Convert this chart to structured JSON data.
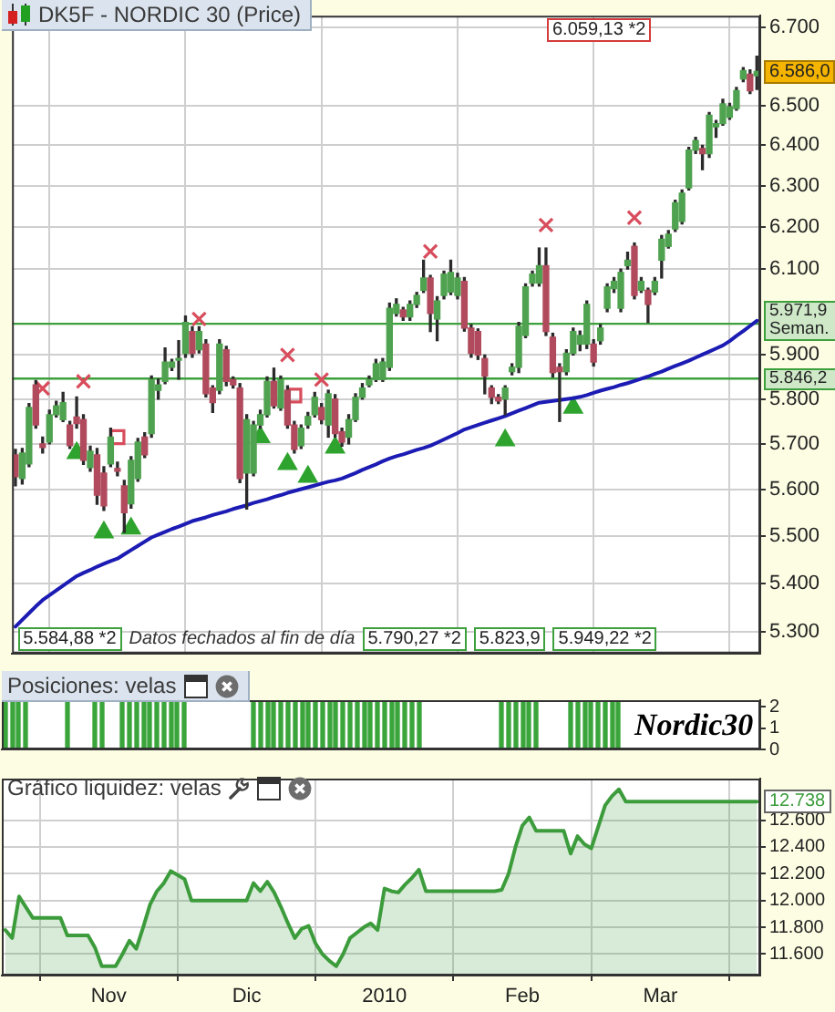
{
  "chart_data": [
    {
      "type": "candlestick",
      "title": "DK5F - NORDIC 30 (Price)",
      "categories": [
        null,
        null,
        null,
        null,
        null,
        null,
        null,
        null,
        null,
        null,
        null,
        null,
        null,
        null,
        null,
        null,
        null,
        null,
        null,
        null,
        null,
        null,
        null,
        null,
        null,
        null,
        null,
        null,
        null,
        null,
        null,
        null,
        null,
        null,
        null,
        null,
        null,
        null,
        null,
        null,
        null,
        null,
        null,
        null,
        null,
        null,
        null,
        null,
        null,
        null,
        null,
        null,
        null,
        null,
        null,
        null,
        null,
        null,
        null,
        null,
        null,
        null,
        null,
        null,
        null,
        null,
        null,
        null,
        null,
        null,
        null,
        null,
        null,
        null,
        null,
        null,
        null,
        null,
        null,
        null,
        null,
        null,
        null,
        null,
        null,
        null,
        null,
        null,
        null,
        null,
        null,
        null,
        null,
        null,
        null,
        null,
        null,
        null,
        null,
        null,
        null,
        null,
        null,
        null,
        null,
        null,
        null,
        null,
        null,
        null
      ],
      "ohlc": [
        [
          5676,
          5688,
          5608,
          5628
        ],
        [
          5624,
          5690,
          5612,
          5680
        ],
        [
          5656,
          5790,
          5650,
          5781
        ],
        [
          5832,
          5842,
          5735,
          5742
        ],
        [
          5700,
          5715,
          5680,
          5692
        ],
        [
          5704,
          5775,
          5700,
          5765
        ],
        [
          5765,
          5795,
          5760,
          5785
        ],
        [
          5754,
          5815,
          5750,
          5792
        ],
        [
          5742,
          5750,
          5690,
          5696
        ],
        [
          5760,
          5805,
          5735,
          5745
        ],
        [
          5754,
          5765,
          5655,
          5664
        ],
        [
          5648,
          5695,
          5640,
          5684
        ],
        [
          5676,
          5690,
          5568,
          5588
        ],
        [
          5636,
          5650,
          5555,
          5565
        ],
        [
          5656,
          5735,
          5650,
          5715
        ],
        [
          5646,
          5660,
          5630,
          5640
        ],
        [
          5608,
          5620,
          5508,
          5550
        ],
        [
          5569,
          5672,
          5560,
          5664
        ],
        [
          5624,
          5712,
          5618,
          5704
        ],
        [
          5715,
          5725,
          5670,
          5676
        ],
        [
          5723,
          5852,
          5715,
          5844
        ],
        [
          5820,
          5845,
          5800,
          5832
        ],
        [
          5840,
          5916,
          5835,
          5884
        ],
        [
          5872,
          5890,
          5865,
          5884
        ],
        [
          5888,
          5933,
          5845,
          5892
        ],
        [
          5904,
          5990,
          5895,
          5975
        ],
        [
          5954,
          5965,
          5895,
          5904
        ],
        [
          5912,
          5965,
          5905,
          5954
        ],
        [
          5925,
          5935,
          5805,
          5812
        ],
        [
          5825,
          5830,
          5770,
          5792
        ],
        [
          5820,
          5935,
          5812,
          5925
        ],
        [
          5912,
          5920,
          5830,
          5840
        ],
        [
          5844,
          5850,
          5825,
          5832
        ],
        [
          5825,
          5835,
          5615,
          5624
        ],
        [
          5636,
          5765,
          5558,
          5754
        ],
        [
          5636,
          5750,
          5630,
          5742
        ],
        [
          5742,
          5775,
          5735,
          5765
        ],
        [
          5765,
          5850,
          5760,
          5840
        ],
        [
          5840,
          5870,
          5780,
          5785
        ],
        [
          5780,
          5852,
          5775,
          5844
        ],
        [
          5820,
          5830,
          5735,
          5742
        ],
        [
          5742,
          5750,
          5680,
          5688
        ],
        [
          5696,
          5742,
          5690,
          5735
        ],
        [
          5742,
          5770,
          5735,
          5761
        ],
        [
          5765,
          5815,
          5760,
          5804
        ],
        [
          5781,
          5790,
          5745,
          5754
        ],
        [
          5742,
          5820,
          5715,
          5812
        ],
        [
          5800,
          5810,
          5715,
          5723
        ],
        [
          5727,
          5735,
          5695,
          5704
        ],
        [
          5715,
          5765,
          5700,
          5754
        ],
        [
          5754,
          5812,
          5750,
          5804
        ],
        [
          5804,
          5835,
          5800,
          5825
        ],
        [
          5832,
          5852,
          5828,
          5844
        ],
        [
          5844,
          5890,
          5840,
          5880
        ],
        [
          5844,
          5892,
          5840,
          5884
        ],
        [
          5872,
          6020,
          5865,
          6008
        ],
        [
          5996,
          6030,
          5990,
          6017
        ],
        [
          6004,
          6010,
          5980,
          5988
        ],
        [
          5988,
          6025,
          5980,
          6017
        ],
        [
          6017,
          6045,
          6010,
          6038
        ],
        [
          6050,
          6121,
          6045,
          6079
        ],
        [
          6079,
          6085,
          5954,
          5996
        ],
        [
          5983,
          6035,
          5933,
          6025
        ],
        [
          6038,
          6095,
          6030,
          6088
        ],
        [
          6046,
          6121,
          6040,
          6092
        ],
        [
          6038,
          6090,
          6030,
          6079
        ],
        [
          6071,
          6080,
          5955,
          5962
        ],
        [
          5962,
          5970,
          5895,
          5904
        ],
        [
          5954,
          5960,
          5890,
          5900
        ],
        [
          5892,
          5900,
          5812,
          5852
        ],
        [
          5825,
          5830,
          5790,
          5804
        ],
        [
          5804,
          5810,
          5790,
          5796
        ],
        [
          5800,
          5830,
          5765,
          5825
        ],
        [
          5862,
          5880,
          5855,
          5872
        ],
        [
          5872,
          5975,
          5860,
          5966
        ],
        [
          5945,
          6065,
          5940,
          6058
        ],
        [
          6067,
          6095,
          6060,
          6088
        ],
        [
          6067,
          6150,
          6060,
          6108
        ],
        [
          6108,
          6150,
          5945,
          5954
        ],
        [
          5941,
          5950,
          5850,
          5860
        ],
        [
          5872,
          5880,
          5750,
          5862
        ],
        [
          5862,
          5912,
          5855,
          5904
        ],
        [
          5904,
          5962,
          5900,
          5954
        ],
        [
          5925,
          5955,
          5910,
          5945
        ],
        [
          5925,
          6025,
          5915,
          6017
        ],
        [
          5925,
          5935,
          5875,
          5884
        ],
        [
          5933,
          5970,
          5925,
          5962
        ],
        [
          6008,
          6065,
          6000,
          6058
        ],
        [
          6054,
          6080,
          6045,
          6071
        ],
        [
          6008,
          6100,
          6000,
          6092
        ],
        [
          6108,
          6140,
          6100,
          6121
        ],
        [
          6154,
          6162,
          6030,
          6038
        ],
        [
          6050,
          6080,
          6045,
          6071
        ],
        [
          6050,
          6055,
          5975,
          6017
        ],
        [
          6046,
          6080,
          6040,
          6071
        ],
        [
          6121,
          6180,
          6079,
          6171
        ],
        [
          6154,
          6192,
          6150,
          6183
        ],
        [
          6196,
          6265,
          6190,
          6259
        ],
        [
          6214,
          6290,
          6208,
          6282
        ],
        [
          6295,
          6395,
          6290,
          6388
        ],
        [
          6388,
          6420,
          6380,
          6412
        ],
        [
          6392,
          6400,
          6340,
          6379
        ],
        [
          6379,
          6482,
          6370,
          6475
        ],
        [
          6446,
          6462,
          6420,
          6454
        ],
        [
          6454,
          6515,
          6450,
          6504
        ],
        [
          6470,
          6505,
          6465,
          6496
        ],
        [
          6492,
          6545,
          6488,
          6537
        ],
        [
          6567,
          6596,
          6560,
          6588
        ],
        [
          6579,
          6590,
          6530,
          6537
        ],
        [
          6575,
          6625,
          6540,
          6586
        ]
      ],
      "colors": [
        "#b04a5c",
        "#4fa24f",
        "#4fa24f",
        "#b04a5c",
        "#b04a5c",
        "#4fa24f",
        "#4fa24f",
        "#4fa24f",
        "#b04a5c",
        "#b04a5c",
        "#b04a5c",
        "#4fa24f",
        "#b04a5c",
        "#b04a5c",
        "#4fa24f",
        "#b04a5c",
        "#b04a5c",
        "#4fa24f",
        "#4fa24f",
        "#b04a5c",
        "#4fa24f",
        "#4fa24f",
        "#4fa24f",
        "#4fa24f",
        "#4fa24f",
        "#4fa24f",
        "#b04a5c",
        "#4fa24f",
        "#b04a5c",
        "#b04a5c",
        "#4fa24f",
        "#b04a5c",
        "#b04a5c",
        "#b04a5c",
        "#4fa24f",
        "#4fa24f",
        "#4fa24f",
        "#4fa24f",
        "#b04a5c",
        "#4fa24f",
        "#b04a5c",
        "#b04a5c",
        "#4fa24f",
        "#4fa24f",
        "#4fa24f",
        "#b04a5c",
        "#4fa24f",
        "#b04a5c",
        "#b04a5c",
        "#4fa24f",
        "#4fa24f",
        "#4fa24f",
        "#4fa24f",
        "#4fa24f",
        "#4fa24f",
        "#4fa24f",
        "#4fa24f",
        "#b04a5c",
        "#4fa24f",
        "#4fa24f",
        "#4fa24f",
        "#b04a5c",
        "#4fa24f",
        "#4fa24f",
        "#4fa24f",
        "#4fa24f",
        "#b04a5c",
        "#b04a5c",
        "#b04a5c",
        "#b04a5c",
        "#b04a5c",
        "#b04a5c",
        "#4fa24f",
        "#4fa24f",
        "#4fa24f",
        "#4fa24f",
        "#4fa24f",
        "#4fa24f",
        "#b04a5c",
        "#b04a5c",
        "#b04a5c",
        "#4fa24f",
        "#4fa24f",
        "#4fa24f",
        "#4fa24f",
        "#b04a5c",
        "#4fa24f",
        "#4fa24f",
        "#4fa24f",
        "#4fa24f",
        "#4fa24f",
        "#b04a5c",
        "#4fa24f",
        "#b04a5c",
        "#4fa24f",
        "#4fa24f",
        "#4fa24f",
        "#4fa24f",
        "#4fa24f",
        "#4fa24f",
        "#4fa24f",
        "#b04a5c",
        "#4fa24f",
        "#4fa24f",
        "#4fa24f",
        "#4fa24f",
        "#4fa24f",
        "#4fa24f",
        "#b04a5c",
        "#4fa24f"
      ],
      "series": [
        {
          "type": "line",
          "color": "#1c1cb4",
          "values": [
            5310,
            5324,
            5338,
            5352,
            5365,
            5375,
            5385,
            5395,
            5405,
            5415,
            5422,
            5428,
            5435,
            5441,
            5447,
            5452,
            5461,
            5470,
            5479,
            5488,
            5497,
            5503,
            5509,
            5515,
            5520,
            5526,
            5532,
            5536,
            5540,
            5545,
            5549,
            5553,
            5558,
            5562,
            5566,
            5571,
            5575,
            5579,
            5584,
            5588,
            5593,
            5597,
            5601,
            5605,
            5609,
            5613,
            5617,
            5620,
            5624,
            5630,
            5636,
            5643,
            5649,
            5655,
            5662,
            5668,
            5673,
            5677,
            5682,
            5687,
            5691,
            5696,
            5703,
            5710,
            5717,
            5724,
            5732,
            5737,
            5742,
            5747,
            5752,
            5757,
            5762,
            5768,
            5774,
            5780,
            5786,
            5792,
            5794,
            5796,
            5798,
            5800,
            5802,
            5805,
            5809,
            5814,
            5819,
            5823,
            5827,
            5832,
            5836,
            5841,
            5846,
            5851,
            5857,
            5862,
            5869,
            5875,
            5881,
            5887,
            5894,
            5901,
            5908,
            5915,
            5922,
            5932,
            5944,
            5955,
            5967,
            5979
          ]
        },
        {
          "type": "scatter",
          "marker": "cross",
          "color": "#d84c5c",
          "values": [
            null,
            null,
            null,
            null,
            5824,
            null,
            null,
            null,
            null,
            null,
            5840,
            null,
            null,
            null,
            null,
            null,
            null,
            null,
            null,
            null,
            null,
            null,
            null,
            null,
            null,
            null,
            null,
            5983,
            null,
            null,
            null,
            null,
            null,
            null,
            null,
            null,
            null,
            null,
            null,
            null,
            5900,
            null,
            null,
            null,
            null,
            5844,
            null,
            null,
            null,
            null,
            null,
            null,
            null,
            null,
            null,
            null,
            null,
            null,
            null,
            null,
            null,
            6142,
            null,
            null,
            null,
            null,
            null,
            null,
            null,
            null,
            null,
            null,
            null,
            null,
            null,
            null,
            null,
            null,
            6205,
            null,
            null,
            null,
            null,
            null,
            null,
            null,
            null,
            null,
            null,
            null,
            null,
            6223,
            null,
            null,
            null,
            null,
            null,
            null,
            null,
            null,
            null,
            null,
            null,
            null,
            null,
            null,
            null,
            null,
            null,
            null
          ]
        },
        {
          "type": "scatter",
          "marker": "square",
          "color": "#d84c5c",
          "values": [
            null,
            null,
            null,
            null,
            null,
            null,
            null,
            null,
            null,
            null,
            null,
            null,
            null,
            null,
            null,
            5715,
            null,
            null,
            null,
            null,
            null,
            null,
            null,
            null,
            null,
            null,
            null,
            null,
            null,
            null,
            null,
            null,
            null,
            null,
            null,
            null,
            null,
            null,
            null,
            null,
            null,
            5808,
            null,
            null,
            null,
            null,
            null,
            null,
            null,
            null,
            null,
            null,
            null,
            null,
            null,
            null,
            null,
            null,
            null,
            null,
            null,
            null,
            null,
            null,
            null,
            null,
            null,
            null,
            null,
            null,
            null,
            null,
            null,
            null,
            null,
            null,
            null,
            null,
            null,
            null,
            null,
            null,
            null,
            null,
            null,
            null,
            null,
            null,
            null,
            null,
            null,
            null,
            null,
            null,
            null,
            null,
            null,
            null,
            null,
            null,
            null,
            null,
            null,
            null,
            null,
            null,
            null,
            null,
            null,
            null
          ]
        },
        {
          "type": "scatter",
          "marker": "triangle",
          "color": "#2ea32e",
          "values": [
            null,
            null,
            null,
            null,
            null,
            null,
            null,
            null,
            null,
            5680,
            null,
            null,
            null,
            5508,
            null,
            null,
            null,
            5516,
            null,
            null,
            null,
            null,
            null,
            null,
            null,
            null,
            null,
            null,
            null,
            null,
            null,
            null,
            null,
            null,
            null,
            null,
            5715,
            null,
            null,
            null,
            5656,
            null,
            null,
            5628,
            null,
            null,
            null,
            5692,
            null,
            null,
            null,
            null,
            null,
            null,
            null,
            null,
            null,
            null,
            null,
            null,
            null,
            null,
            null,
            null,
            null,
            null,
            null,
            null,
            null,
            null,
            null,
            null,
            5708,
            null,
            null,
            null,
            null,
            null,
            null,
            null,
            null,
            null,
            5781,
            null,
            null,
            null,
            null,
            null,
            null,
            null,
            null,
            null,
            null,
            null,
            null,
            null,
            null,
            null,
            null,
            null,
            null,
            null,
            null,
            null,
            null,
            null,
            null,
            null,
            null,
            null
          ]
        }
      ],
      "ylim": [
        5255,
        6730
      ],
      "yticks": [
        {
          "value": 5300,
          "label": "5.300"
        },
        {
          "value": 5400,
          "label": "5.400"
        },
        {
          "value": 5500,
          "label": "5.500"
        },
        {
          "value": 5600,
          "label": "5.600"
        },
        {
          "value": 5700,
          "label": "5.700"
        },
        {
          "value": 5800,
          "label": "5.800"
        },
        {
          "value": 5900,
          "label": "5.900"
        },
        {
          "value": 6100,
          "label": "6.100"
        },
        {
          "value": 6200,
          "label": "6.200"
        },
        {
          "value": 6300,
          "label": "6.300"
        },
        {
          "value": 6400,
          "label": "6.400"
        },
        {
          "value": 6500,
          "label": "6.500"
        },
        {
          "value": 6700,
          "label": "6.700"
        }
      ],
      "log": true,
      "grid": true,
      "tick_labels": "y",
      "ref_lines": [
        {
          "axis": "y",
          "value": 5971.9,
          "label": "5.971,9 Seman.",
          "color": "#3ca03c"
        },
        {
          "axis": "y",
          "value": 5846.2,
          "label": "5.846,2",
          "color": "#3ca03c"
        }
      ],
      "annotations": [
        "6.059,13 *2",
        "5.584,88 *2",
        "Datos fechados al fin de día",
        "5.790,27 *2",
        "5.823,9",
        "5.949,22 *2",
        {
          "text": "6.586,0",
          "y": 6586
        }
      ]
    },
    {
      "type": "bar",
      "title": "Posiciones: velas",
      "categories": [
        null,
        null,
        null,
        null,
        null,
        null,
        null,
        null,
        null,
        null,
        null,
        null,
        null,
        null,
        null,
        null,
        null,
        null,
        null,
        null,
        null,
        null,
        null,
        null,
        null,
        null,
        null,
        null,
        null,
        null,
        null,
        null,
        null,
        null,
        null,
        null,
        null,
        null,
        null,
        null,
        null,
        null,
        null,
        null,
        null,
        null,
        null,
        null,
        null,
        null,
        null,
        null,
        null,
        null,
        null,
        null,
        null,
        null,
        null,
        null,
        null,
        null,
        null,
        null,
        null,
        null,
        null,
        null,
        null,
        null,
        null,
        null,
        null,
        null,
        null,
        null,
        null,
        null,
        null,
        null,
        null,
        null,
        null,
        null,
        null,
        null,
        null,
        null,
        null,
        null,
        null,
        null,
        null,
        null,
        null,
        null,
        null,
        null,
        null,
        null,
        null,
        null,
        null,
        null,
        null,
        null,
        null,
        null,
        null,
        null
      ],
      "values": [
        2.2,
        2.2,
        2.2,
        2.2,
        0,
        0,
        0,
        0,
        0,
        2.2,
        0,
        0,
        0,
        2.2,
        2.2,
        0,
        0,
        2.2,
        2.2,
        2.2,
        2.2,
        2.2,
        2.2,
        2.2,
        2.2,
        2.2,
        2.2,
        0,
        0,
        0,
        0,
        0,
        0,
        0,
        0,
        0,
        2.2,
        2.2,
        2.2,
        2.2,
        2.2,
        2.2,
        2.2,
        2.2,
        2.2,
        2.2,
        2.2,
        2.2,
        2.2,
        2.2,
        2.2,
        2.2,
        2.2,
        2.2,
        2.2,
        2.2,
        2.2,
        2.2,
        2.2,
        2.2,
        2.2,
        0,
        0,
        0,
        0,
        0,
        0,
        0,
        0,
        0,
        0,
        0,
        2.2,
        2.2,
        2.2,
        2.2,
        2.2,
        2.2,
        0,
        0,
        0,
        0,
        2.2,
        2.2,
        2.2,
        2.2,
        2.2,
        2.2,
        2.2,
        2.2,
        0,
        0,
        0,
        0,
        0,
        0,
        0,
        0,
        0,
        0,
        0,
        0,
        0,
        0,
        0,
        0,
        0,
        0,
        0,
        0
      ],
      "color": "#3aa53a",
      "ylim": [
        0,
        2.3
      ],
      "yticks": [
        0,
        1,
        2
      ],
      "tick_labels": "y",
      "annotations": [
        "Nordic30"
      ]
    },
    {
      "type": "area",
      "title": "Gráfico liquidez: velas",
      "categories": [
        null,
        null,
        null,
        null,
        null,
        null,
        null,
        null,
        null,
        null,
        null,
        null,
        null,
        null,
        null,
        "Nov",
        null,
        null,
        null,
        null,
        null,
        null,
        null,
        null,
        null,
        null,
        null,
        null,
        null,
        null,
        null,
        null,
        null,
        null,
        null,
        "Dic",
        null,
        null,
        null,
        null,
        null,
        null,
        null,
        null,
        null,
        null,
        null,
        null,
        null,
        null,
        null,
        null,
        null,
        null,
        null,
        "2010",
        null,
        null,
        null,
        null,
        null,
        null,
        null,
        null,
        null,
        null,
        null,
        null,
        null,
        null,
        null,
        null,
        null,
        null,
        null,
        "Feb",
        null,
        null,
        null,
        null,
        null,
        null,
        null,
        null,
        null,
        null,
        null,
        null,
        null,
        null,
        null,
        null,
        null,
        null,
        null,
        "Mar",
        null,
        null,
        null,
        null,
        null,
        null,
        null,
        null,
        null,
        null,
        null,
        null,
        null,
        null
      ],
      "values": [
        11780,
        11720,
        12030,
        11950,
        11870,
        11870,
        11870,
        11870,
        11870,
        11740,
        11740,
        11740,
        11740,
        11650,
        11510,
        11510,
        11510,
        11600,
        11700,
        11640,
        11800,
        11970,
        12070,
        12130,
        12220,
        12190,
        12160,
        12000,
        12000,
        12000,
        12000,
        12000,
        12000,
        12000,
        12000,
        12000,
        12130,
        12070,
        12140,
        12060,
        11950,
        11830,
        11720,
        11790,
        11810,
        11680,
        11600,
        11550,
        11510,
        11600,
        11720,
        11760,
        11800,
        11830,
        11780,
        12090,
        12070,
        12060,
        12120,
        12170,
        12230,
        12070,
        12070,
        12070,
        12070,
        12070,
        12070,
        12070,
        12070,
        12070,
        12070,
        12070,
        12080,
        12200,
        12400,
        12560,
        12620,
        12520,
        12520,
        12520,
        12520,
        12520,
        12350,
        12480,
        12420,
        12390,
        12550,
        12710,
        12780,
        12830,
        12738,
        12738,
        12738,
        12738,
        12738,
        12738,
        12738,
        12738,
        12738,
        12738,
        12738,
        12738,
        12738,
        12738,
        12738,
        12738,
        12738,
        12738,
        12738,
        12738
      ],
      "color": "#3c9c3c",
      "ylim": [
        11440,
        12910
      ],
      "yticks": [
        {
          "value": 11600,
          "label": "11.600"
        },
        {
          "value": 11800,
          "label": "11.800"
        },
        {
          "value": 12000,
          "label": "12.000"
        },
        {
          "value": 12200,
          "label": "12.200"
        },
        {
          "value": 12400,
          "label": "12.400"
        },
        {
          "value": 12600,
          "label": "12.600"
        }
      ],
      "grid": true,
      "annotations": [
        {
          "text": "12.738",
          "y": 12738
        }
      ]
    }
  ]
}
